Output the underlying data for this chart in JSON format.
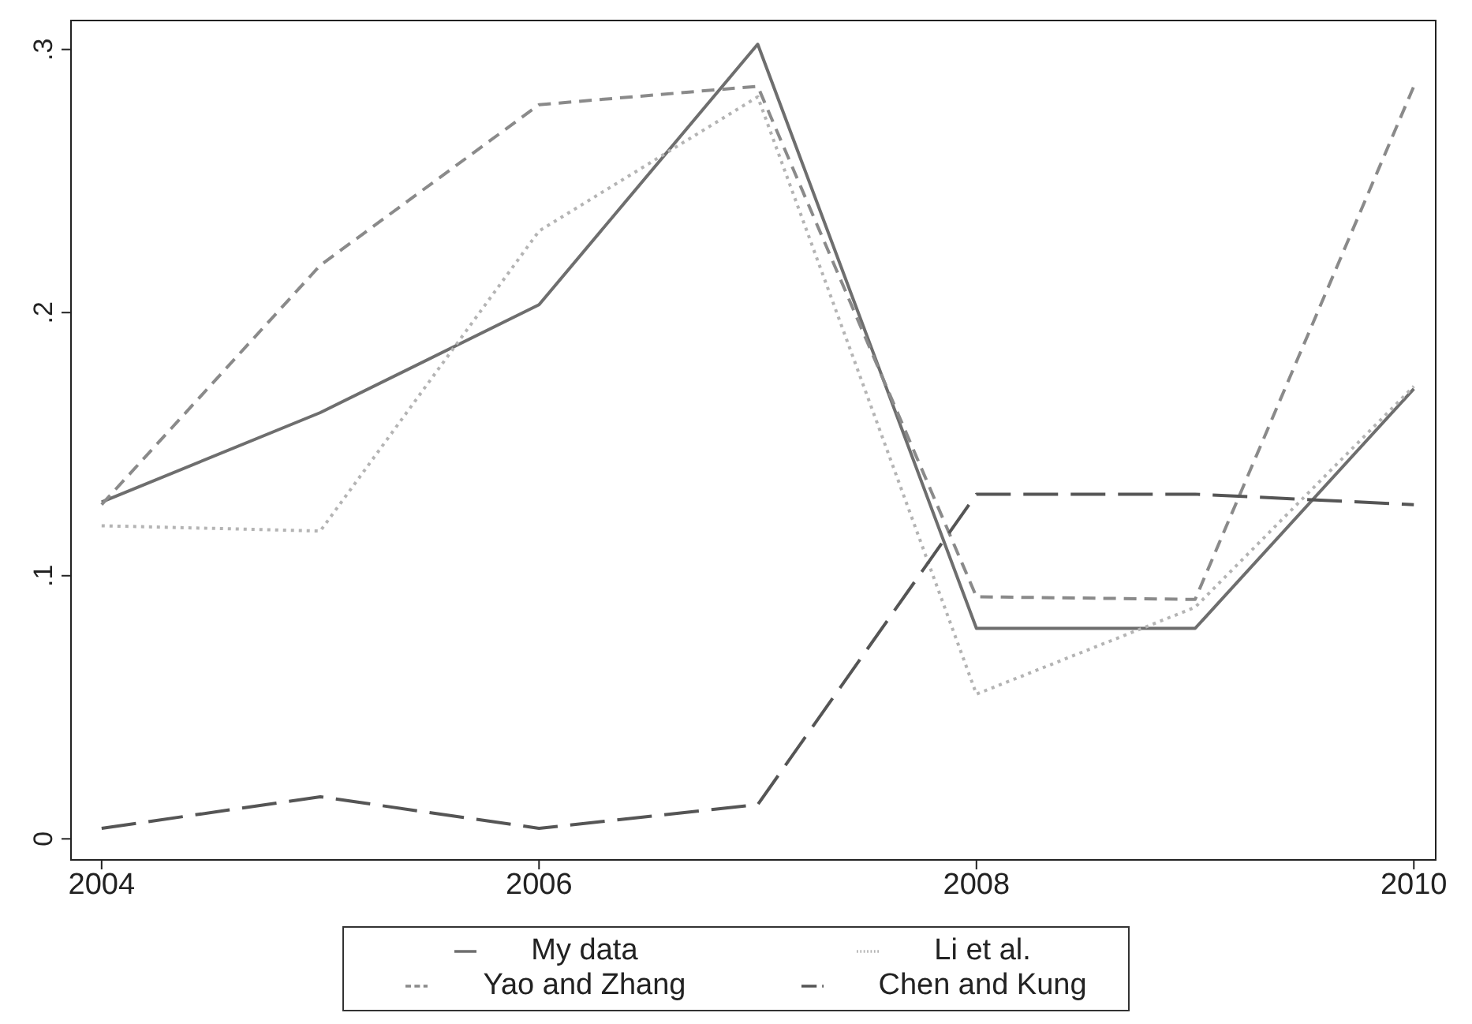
{
  "chart_data": {
    "type": "line",
    "x": [
      2004,
      2005,
      2006,
      2007,
      2008,
      2009,
      2010
    ],
    "series": [
      {
        "name": "My data",
        "color": "#6e6e6e",
        "line_style": "solid",
        "values": [
          0.128,
          0.162,
          0.203,
          0.302,
          0.08,
          0.08,
          0.171
        ]
      },
      {
        "name": "Yao and Zhang",
        "color": "#8a8a8a",
        "line_style": "dashed",
        "values": [
          0.127,
          0.218,
          0.279,
          0.286,
          0.092,
          0.091,
          0.286
        ]
      },
      {
        "name": "Li et al.",
        "color": "#b4b4b4",
        "line_style": "dotted",
        "values": [
          0.119,
          0.117,
          0.231,
          0.282,
          0.055,
          0.088,
          0.172
        ]
      },
      {
        "name": "Chen and Kung",
        "color": "#555555",
        "line_style": "longdash",
        "values": [
          0.004,
          0.016,
          0.004,
          0.013,
          0.131,
          0.131,
          0.127
        ]
      }
    ],
    "xlim": [
      2003.86,
      2010.1
    ],
    "xticks": [
      2004,
      2006,
      2008,
      2010
    ],
    "ylim": [
      -0.008,
      0.311
    ],
    "yticks": [
      {
        "value": 0,
        "label": "0"
      },
      {
        "value": 0.1,
        "label": ".1"
      },
      {
        "value": 0.2,
        "label": ".2"
      },
      {
        "value": 0.3,
        "label": ".3"
      }
    ],
    "grid": false,
    "legend": "bottom",
    "marker": "none"
  }
}
